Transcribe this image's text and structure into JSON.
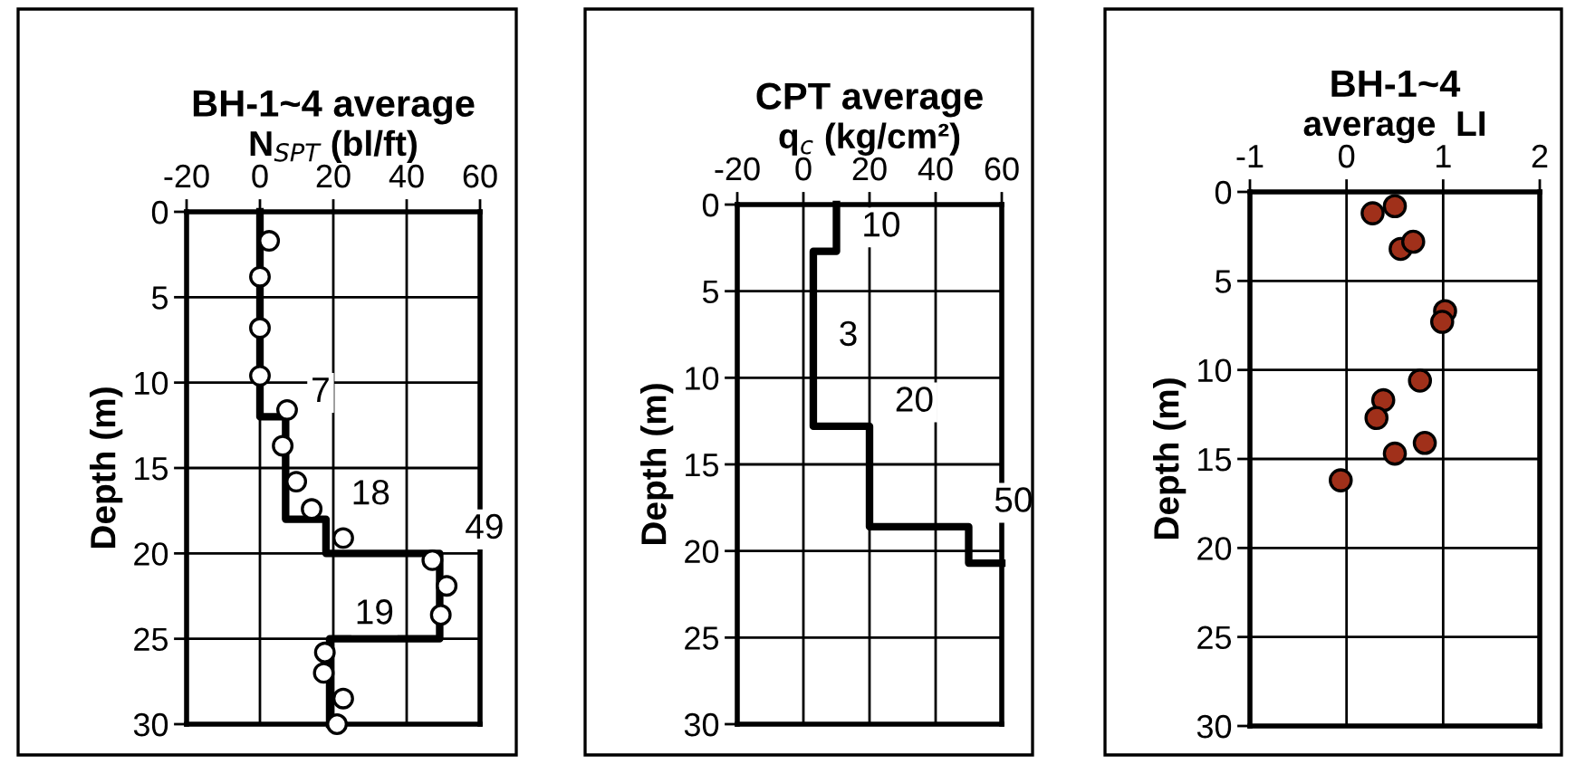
{
  "chart_data": [
    {
      "type": "scatter",
      "title": "BH-1~4 average",
      "xlabel": "N$_{SPT}$ (bl/ft)",
      "ylabel": "Depth (m)",
      "xlim": [
        -20,
        60
      ],
      "xticks": [
        -20,
        0,
        20,
        40,
        60
      ],
      "ylim": [
        30,
        0
      ],
      "yticks": [
        0,
        5,
        10,
        15,
        20,
        25,
        30
      ],
      "grid": true,
      "legend": false,
      "series": [
        {
          "marker": "circle",
          "color": "#ffffff",
          "x": [
            2.5,
            0,
            0,
            0,
            7.4,
            6.2,
            9.9,
            14.1,
            22.7,
            47,
            50.9,
            49.3,
            17.7,
            17.4,
            22.7,
            21
          ],
          "values": [
            1.7,
            3.8,
            6.8,
            9.6,
            11.6,
            13.7,
            15.8,
            17.4,
            19.1,
            20.4,
            21.9,
            23.6,
            25.8,
            27.0,
            28.5,
            30
          ]
        },
        {
          "type": "line",
          "marker": "none",
          "line_style": "solid",
          "color": "#000000",
          "x": [
            0,
            0,
            7,
            7,
            18,
            18,
            49,
            49,
            19,
            19
          ],
          "values": [
            0,
            12,
            12,
            18,
            18,
            20,
            20,
            25,
            25,
            30
          ]
        }
      ],
      "annotations": [
        {
          "text": "7",
          "x": 7,
          "y": 12
        },
        {
          "text": "18",
          "x": 18,
          "y": 18
        },
        {
          "text": "49",
          "x": 49,
          "y": 20
        },
        {
          "text": "19",
          "x": 19,
          "y": 25
        }
      ]
    },
    {
      "type": "line",
      "title": "CPT average",
      "xlabel": "q$_{c}$ (kg/cm²)",
      "ylabel": "Depth (m)",
      "xlim": [
        -20,
        60
      ],
      "xticks": [
        -20,
        0,
        20,
        40,
        60
      ],
      "ylim": [
        30,
        0
      ],
      "yticks": [
        0,
        5,
        10,
        15,
        20,
        25,
        30
      ],
      "grid": true,
      "legend": false,
      "series": [
        {
          "marker": "none",
          "line_style": "solid",
          "color": "#000000",
          "x": [
            10,
            10,
            3,
            3,
            20,
            20,
            50,
            50,
            60
          ],
          "values": [
            0,
            2.7,
            2.7,
            12.8,
            12.8,
            18.6,
            18.6,
            20.7,
            20.7
          ]
        }
      ],
      "annotations": [
        {
          "text": "10",
          "x": 10,
          "y": 2.7
        },
        {
          "text": "3",
          "x": 3,
          "y": 9
        },
        {
          "text": "20",
          "x": 20,
          "y": 12.8
        },
        {
          "text": "50",
          "x": 50,
          "y": 18.6
        }
      ]
    },
    {
      "type": "scatter",
      "title": "BH-1~4",
      "xlabel": "average  LI",
      "ylabel": "Depth (m)",
      "xlim": [
        -1,
        2
      ],
      "xticks": [
        -1,
        0,
        1,
        2
      ],
      "ylim": [
        30,
        0
      ],
      "yticks": [
        0,
        5,
        10,
        15,
        20,
        25,
        30
      ],
      "grid": true,
      "legend": false,
      "series": [
        {
          "marker": "circle",
          "color": "#a0301a",
          "x": [
            0.27,
            0.5,
            0.56,
            0.69,
            1.02,
            0.99,
            0.76,
            0.38,
            0.31,
            0.81,
            0.5,
            -0.06
          ],
          "values": [
            1.2,
            0.8,
            3.2,
            2.8,
            6.7,
            7.3,
            10.6,
            11.7,
            12.7,
            14.1,
            14.7,
            16.2
          ]
        }
      ]
    }
  ]
}
